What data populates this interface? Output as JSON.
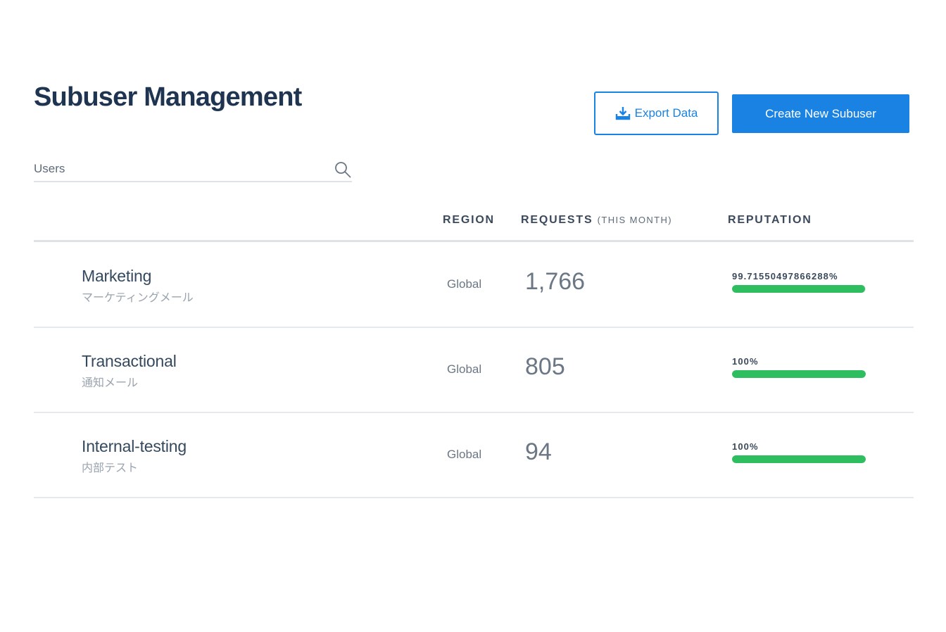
{
  "page": {
    "title": "Subuser Management"
  },
  "toolbar": {
    "export_label": "Export Data",
    "export_icon": "download-tray-icon",
    "create_label": "Create New Subuser"
  },
  "search": {
    "placeholder": "Users",
    "value": "",
    "icon": "search-icon"
  },
  "table": {
    "columns": {
      "region": "REGION",
      "requests": "REQUESTS",
      "requests_sub": "(THIS MONTH)",
      "reputation": "REPUTATION"
    },
    "rows": [
      {
        "name": "Marketing",
        "subtitle": "マーケティングメール",
        "region": "Global",
        "requests": "1,766",
        "reputation_label": "99.71550497866288%",
        "reputation_value": 99.71550497866288
      },
      {
        "name": "Transactional",
        "subtitle": "通知メール",
        "region": "Global",
        "requests": "805",
        "reputation_label": "100%",
        "reputation_value": 100
      },
      {
        "name": "Internal-testing",
        "subtitle": "内部テスト",
        "region": "Global",
        "requests": "94",
        "reputation_label": "100%",
        "reputation_value": 100
      }
    ]
  },
  "colors": {
    "accent": "#1a82e2",
    "reputation_bar": "#2fbe5f",
    "title": "#1f3450"
  }
}
